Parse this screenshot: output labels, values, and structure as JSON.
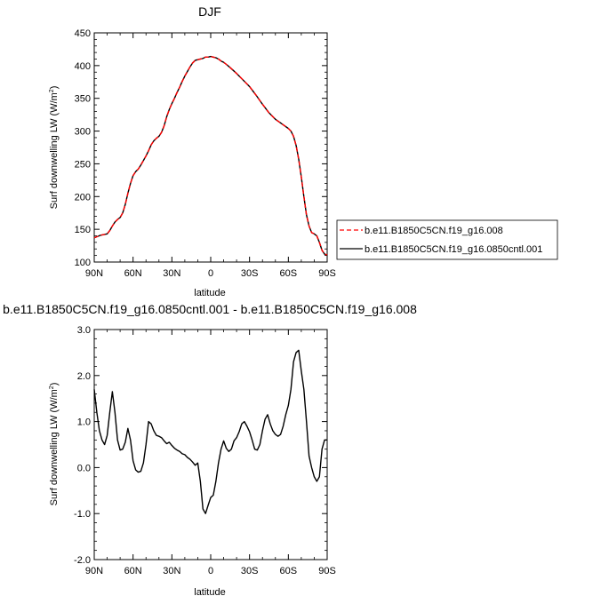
{
  "chart_data": [
    {
      "type": "line",
      "title": "DJF",
      "xlabel": "latitude",
      "ylabel": "Surf downwelling LW (W/m",
      "ylabel_sup": "2",
      "ylabel_end": ")",
      "xlim": [
        90,
        -90
      ],
      "ylim": [
        100,
        450
      ],
      "xticks": [
        90,
        60,
        30,
        0,
        -30,
        -60,
        -90
      ],
      "xtick_labels": [
        "90N",
        "60N",
        "30N",
        "0",
        "30S",
        "60S",
        "90S"
      ],
      "yticks": [
        100,
        150,
        200,
        250,
        300,
        350,
        400,
        450
      ],
      "ytick_labels": [
        "100",
        "150",
        "200",
        "250",
        "300",
        "350",
        "400",
        "450"
      ],
      "legend": {
        "position": "right",
        "entries": [
          {
            "label": "b.e11.B1850C5CN.f19_g16.008",
            "color": "#ff0000",
            "dash": "dashed"
          },
          {
            "label": "b.e11.B1850C5CN.f19_g16.0850cntl.001",
            "color": "#000000",
            "dash": "solid"
          }
        ]
      },
      "series": [
        {
          "name": "b.e11.B1850C5CN.f19_g16.008",
          "color": "#ff0000",
          "dash": "dashed",
          "x": [
            90,
            85,
            80,
            78,
            76,
            74,
            72,
            70,
            68,
            66,
            64,
            62,
            60,
            58,
            56,
            54,
            52,
            50,
            48,
            46,
            44,
            42,
            40,
            38,
            36,
            34,
            32,
            30,
            28,
            26,
            24,
            22,
            20,
            18,
            16,
            14,
            12,
            10,
            8,
            6,
            4,
            2,
            0,
            -2,
            -4,
            -6,
            -8,
            -10,
            -12,
            -15,
            -20,
            -25,
            -30,
            -35,
            -40,
            -45,
            -50,
            -55,
            -60,
            -62,
            -64,
            -66,
            -68,
            -70,
            -72,
            -74,
            -76,
            -78,
            -80,
            -82,
            -84,
            -86,
            -88,
            -90
          ],
          "y": [
            137,
            141,
            143,
            148,
            155,
            161,
            165,
            168,
            175,
            188,
            205,
            220,
            232,
            238,
            242,
            248,
            255,
            262,
            270,
            279,
            285,
            289,
            292,
            298,
            308,
            322,
            333,
            342,
            350,
            359,
            367,
            376,
            384,
            391,
            398,
            404,
            408,
            409,
            410,
            411,
            413,
            413,
            414,
            413,
            412,
            410,
            407,
            405,
            402,
            397,
            388,
            378,
            368,
            355,
            341,
            328,
            318,
            311,
            304,
            300,
            292,
            278,
            257,
            230,
            200,
            172,
            155,
            145,
            143,
            140,
            130,
            118,
            112,
            111
          ]
        },
        {
          "name": "b.e11.B1850C5CN.f19_g16.0850cntl.001",
          "color": "#000000",
          "dash": "solid",
          "x": [
            90,
            85,
            80,
            78,
            76,
            74,
            72,
            70,
            68,
            66,
            64,
            62,
            60,
            58,
            56,
            54,
            52,
            50,
            48,
            46,
            44,
            42,
            40,
            38,
            36,
            34,
            32,
            30,
            28,
            26,
            24,
            22,
            20,
            18,
            16,
            14,
            12,
            10,
            8,
            6,
            4,
            2,
            0,
            -2,
            -4,
            -6,
            -8,
            -10,
            -12,
            -15,
            -20,
            -25,
            -30,
            -35,
            -40,
            -45,
            -50,
            -55,
            -60,
            -62,
            -64,
            -66,
            -68,
            -70,
            -72,
            -74,
            -76,
            -78,
            -80,
            -82,
            -84,
            -86,
            -88,
            -90
          ],
          "y": [
            137,
            141,
            143,
            148,
            155,
            161,
            165,
            168,
            175,
            188,
            205,
            220,
            232,
            238,
            242,
            248,
            255,
            262,
            270,
            279,
            285,
            289,
            292,
            298,
            308,
            322,
            333,
            342,
            350,
            359,
            367,
            376,
            384,
            391,
            398,
            404,
            408,
            409,
            410,
            411,
            413,
            413,
            414,
            413,
            412,
            410,
            407,
            405,
            402,
            397,
            388,
            378,
            368,
            355,
            341,
            328,
            318,
            311,
            304,
            300,
            292,
            278,
            257,
            230,
            200,
            172,
            155,
            145,
            143,
            140,
            130,
            118,
            112,
            111
          ]
        }
      ]
    },
    {
      "type": "line",
      "title": "b.e11.B1850C5CN.f19_g16.0850cntl.001 - b.e11.B1850C5CN.f19_g16.008",
      "xlabel": "latitude",
      "ylabel": "Surf downwelling LW (W/m",
      "ylabel_sup": "2",
      "ylabel_end": ")",
      "xlim": [
        90,
        -90
      ],
      "ylim": [
        -2.0,
        3.0
      ],
      "xticks": [
        90,
        60,
        30,
        0,
        -30,
        -60,
        -90
      ],
      "xtick_labels": [
        "90N",
        "60N",
        "30N",
        "0",
        "30S",
        "60S",
        "90S"
      ],
      "yticks": [
        -2.0,
        -1.0,
        0.0,
        1.0,
        2.0,
        3.0
      ],
      "ytick_labels": [
        "-2.0",
        "-1.0",
        "0.0",
        "1.0",
        "2.0",
        "3.0"
      ],
      "series": [
        {
          "color": "#000000",
          "dash": "solid",
          "x": [
            90,
            88,
            86,
            84,
            82,
            80,
            78,
            76,
            74,
            72,
            70,
            68,
            66,
            64,
            62,
            60,
            58,
            56,
            54,
            52,
            50,
            48,
            46,
            44,
            42,
            40,
            38,
            36,
            34,
            32,
            30,
            28,
            26,
            24,
            22,
            20,
            18,
            16,
            14,
            12,
            10,
            8,
            6,
            4,
            2,
            0,
            -2,
            -4,
            -6,
            -8,
            -10,
            -12,
            -14,
            -16,
            -18,
            -20,
            -22,
            -24,
            -26,
            -28,
            -30,
            -32,
            -34,
            -36,
            -38,
            -40,
            -42,
            -44,
            -46,
            -48,
            -50,
            -52,
            -54,
            -56,
            -58,
            -60,
            -62,
            -64,
            -66,
            -68,
            -70,
            -72,
            -74,
            -76,
            -78,
            -80,
            -82,
            -84,
            -86,
            -88,
            -90
          ],
          "y": [
            1.7,
            1.2,
            0.8,
            0.6,
            0.5,
            0.7,
            1.2,
            1.65,
            1.2,
            0.6,
            0.38,
            0.4,
            0.55,
            0.85,
            0.6,
            0.15,
            -0.05,
            -0.1,
            -0.08,
            0.1,
            0.5,
            1.0,
            0.95,
            0.8,
            0.7,
            0.68,
            0.65,
            0.58,
            0.52,
            0.55,
            0.48,
            0.42,
            0.38,
            0.35,
            0.3,
            0.28,
            0.22,
            0.18,
            0.12,
            0.05,
            0.1,
            -0.3,
            -0.9,
            -1.0,
            -0.82,
            -0.65,
            -0.6,
            -0.3,
            0.1,
            0.4,
            0.58,
            0.42,
            0.35,
            0.4,
            0.58,
            0.65,
            0.78,
            0.95,
            1.0,
            0.9,
            0.78,
            0.6,
            0.4,
            0.38,
            0.5,
            0.8,
            1.05,
            1.15,
            0.95,
            0.8,
            0.72,
            0.68,
            0.72,
            0.9,
            1.15,
            1.35,
            1.7,
            2.3,
            2.5,
            2.55,
            2.1,
            1.7,
            1.0,
            0.25,
            0.0,
            -0.2,
            -0.3,
            -0.2,
            0.4,
            0.6,
            0.6
          ]
        }
      ]
    }
  ]
}
